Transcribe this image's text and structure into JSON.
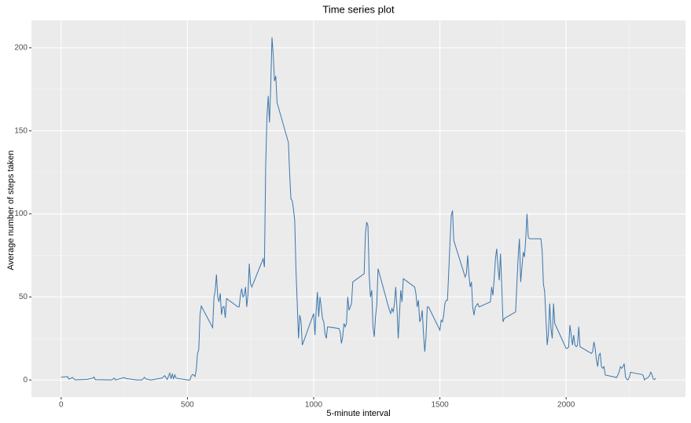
{
  "chart_data": {
    "type": "line",
    "title": "Time series plot",
    "x_label": "5-minute interval",
    "y_label": "Average number of steps taken",
    "color": "#3b76ad",
    "grid": true,
    "xlim": [
      -117.75,
      2472.75
    ],
    "ylim": [
      -10.31,
      216.48
    ],
    "xticks": [
      0,
      500,
      1000,
      1500,
      2000
    ],
    "yticks": [
      0,
      50,
      100,
      150,
      200
    ],
    "x_minor_ticks": [
      250,
      750,
      1250,
      1750,
      2250
    ],
    "y_minor_ticks": [
      25,
      75,
      125,
      175
    ],
    "x": [
      0,
      25,
      30,
      45,
      55,
      100,
      125,
      130,
      135,
      200,
      210,
      215,
      250,
      255,
      300,
      320,
      330,
      335,
      340,
      355,
      400,
      410,
      420,
      430,
      435,
      440,
      445,
      450,
      455,
      500,
      510,
      515,
      520,
      525,
      530,
      535,
      540,
      545,
      550,
      555,
      600,
      605,
      610,
      615,
      620,
      625,
      630,
      635,
      640,
      645,
      650,
      655,
      700,
      705,
      710,
      715,
      720,
      725,
      730,
      735,
      740,
      745,
      750,
      755,
      800,
      805,
      810,
      815,
      820,
      825,
      830,
      835,
      840,
      845,
      850,
      855,
      900,
      905,
      910,
      915,
      920,
      925,
      930,
      935,
      940,
      945,
      950,
      955,
      1000,
      1005,
      1010,
      1015,
      1020,
      1025,
      1030,
      1035,
      1040,
      1045,
      1050,
      1055,
      1100,
      1105,
      1110,
      1115,
      1120,
      1125,
      1130,
      1135,
      1140,
      1145,
      1150,
      1155,
      1200,
      1205,
      1210,
      1215,
      1220,
      1225,
      1230,
      1235,
      1240,
      1245,
      1250,
      1255,
      1300,
      1305,
      1310,
      1315,
      1320,
      1325,
      1330,
      1335,
      1340,
      1345,
      1350,
      1355,
      1400,
      1405,
      1410,
      1415,
      1420,
      1425,
      1430,
      1435,
      1440,
      1445,
      1450,
      1455,
      1500,
      1505,
      1510,
      1515,
      1520,
      1525,
      1530,
      1535,
      1540,
      1545,
      1550,
      1555,
      1600,
      1605,
      1610,
      1615,
      1620,
      1625,
      1630,
      1635,
      1640,
      1645,
      1650,
      1655,
      1700,
      1705,
      1710,
      1715,
      1720,
      1725,
      1730,
      1735,
      1740,
      1745,
      1750,
      1755,
      1800,
      1805,
      1810,
      1815,
      1820,
      1825,
      1830,
      1835,
      1840,
      1845,
      1850,
      1855,
      1900,
      1905,
      1910,
      1915,
      1920,
      1925,
      1930,
      1935,
      1940,
      1945,
      1950,
      1955,
      2000,
      2005,
      2010,
      2015,
      2020,
      2025,
      2030,
      2035,
      2040,
      2045,
      2050,
      2055,
      2100,
      2105,
      2110,
      2115,
      2120,
      2125,
      2130,
      2135,
      2140,
      2145,
      2150,
      2155,
      2200,
      2205,
      2210,
      2215,
      2220,
      2225,
      2230,
      2235,
      2240,
      2245,
      2250,
      2255,
      2300,
      2305,
      2310,
      2315,
      2320,
      2325,
      2330,
      2335,
      2340,
      2345,
      2350,
      2355
    ],
    "values": [
      1.7,
      2.1,
      0.5,
      1.5,
      0.1,
      0.3,
      1.1,
      1.8,
      0.2,
      0,
      1.1,
      0,
      1.5,
      0.9,
      0,
      0,
      1.6,
      0.6,
      0.5,
      0,
      1.2,
      2.6,
      0.3,
      4.1,
      0.7,
      3.5,
      0.8,
      3.1,
      1.1,
      0,
      0,
      2.2,
      3.3,
      3,
      2.1,
      6.1,
      16,
      18.3,
      39.5,
      44.5,
      31.5,
      49.3,
      53.8,
      63.5,
      50,
      47.1,
      52.2,
      39.3,
      44,
      44.2,
      37.4,
      49,
      44,
      44,
      51,
      55,
      50,
      51,
      56,
      44,
      52,
      70,
      58,
      56,
      73,
      68,
      129,
      158,
      171,
      155,
      177,
      206.17,
      196,
      180,
      183,
      167,
      143,
      124,
      109,
      108,
      103,
      96,
      66,
      46,
      25,
      39,
      35,
      21,
      40,
      27,
      42,
      53,
      38,
      50,
      44,
      37,
      35,
      28,
      25,
      32,
      31,
      29,
      22,
      26,
      34,
      32,
      34,
      50,
      42,
      44,
      46,
      59,
      64,
      88,
      95,
      93,
      63,
      50,
      54,
      32,
      26,
      38,
      45,
      67,
      42,
      40,
      43,
      41,
      46,
      56,
      43,
      25,
      40,
      54,
      47,
      61,
      56,
      52,
      44,
      48,
      35,
      37,
      42,
      28,
      17,
      26,
      44,
      44,
      30,
      36,
      35,
      39,
      46,
      48,
      48,
      65,
      83,
      99,
      102,
      84,
      62,
      64,
      75,
      63,
      56,
      59,
      44,
      39,
      44,
      45,
      46,
      44,
      47,
      56,
      51,
      61,
      73,
      79,
      68,
      60,
      76,
      57,
      35,
      37,
      41,
      58,
      74,
      85,
      59,
      68,
      77,
      74,
      85,
      100,
      86,
      85,
      85,
      78,
      58,
      53,
      37,
      21,
      28,
      46,
      31,
      25,
      46,
      34,
      19,
      19,
      20,
      33,
      27,
      21,
      27,
      21,
      20,
      21,
      32,
      20,
      16,
      17,
      23,
      19,
      12,
      8,
      15,
      16,
      8,
      7,
      8,
      3,
      1.5,
      3,
      5,
      8,
      7,
      8,
      9.8,
      2,
      0.4,
      0.1,
      1.6,
      4.6,
      3.3,
      2.8,
      0,
      0.8,
      1,
      1.6,
      2.6,
      4.7,
      3.3,
      0.6,
      0.2,
      1.1
    ]
  }
}
